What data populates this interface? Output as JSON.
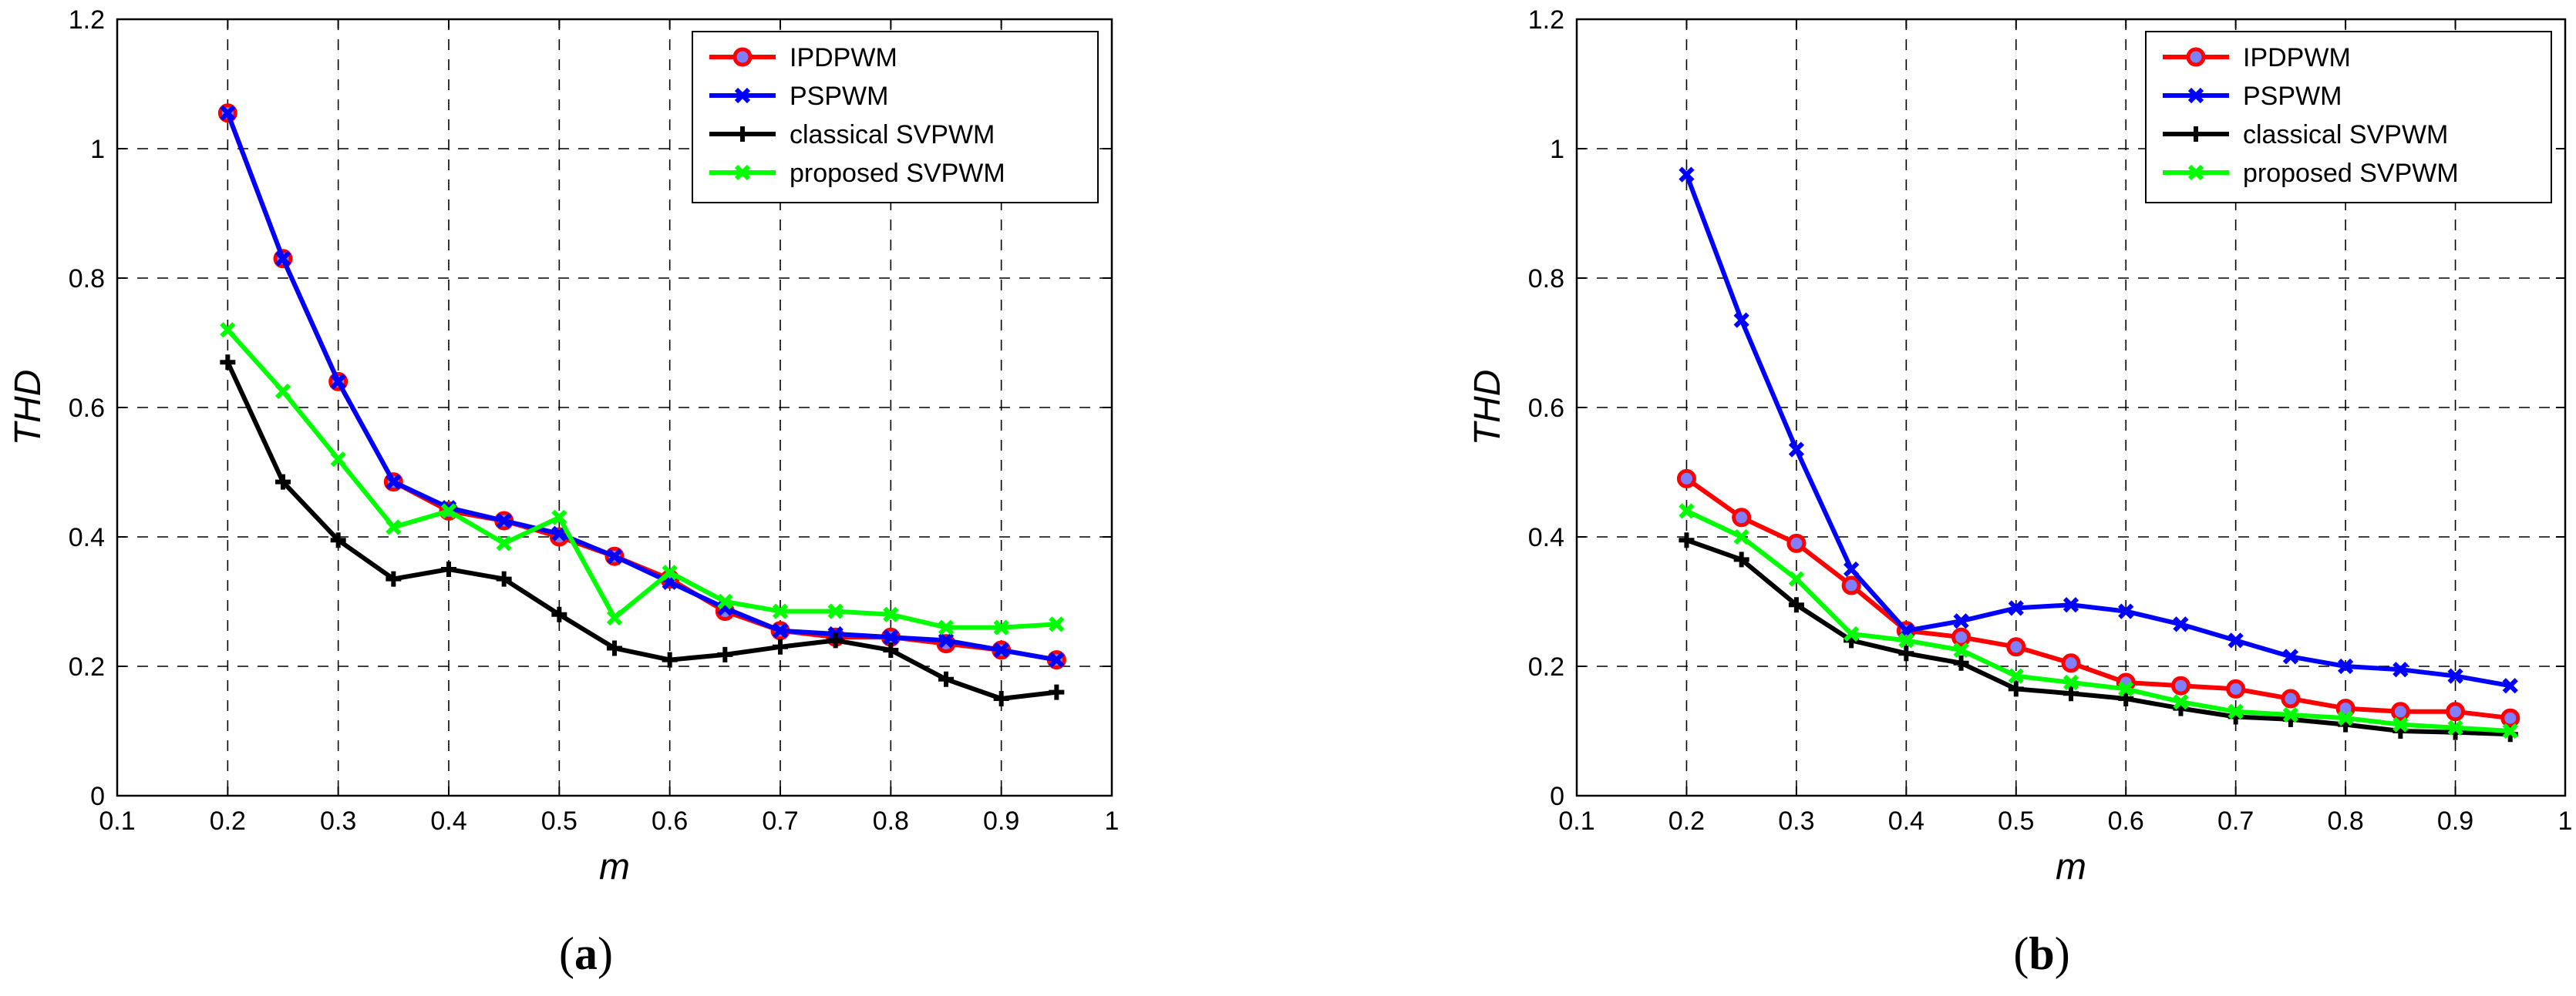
{
  "chart_data": [
    {
      "type": "line",
      "panel_label": "a",
      "xlabel": "m",
      "ylabel": "THD",
      "xlim": [
        0.1,
        1
      ],
      "ylim": [
        0,
        1.2
      ],
      "x_ticks": [
        0.1,
        0.2,
        0.3,
        0.4,
        0.5,
        0.6,
        0.7,
        0.8,
        0.9,
        1
      ],
      "x_tick_labels": [
        "0.1",
        "0.2",
        "0.3",
        "0.4",
        "0.5",
        "0.6",
        "0.7",
        "0.8",
        "0.9",
        "1"
      ],
      "y_ticks": [
        0,
        0.2,
        0.4,
        0.6,
        0.8,
        1,
        1.2
      ],
      "y_tick_labels": [
        "0",
        "0.2",
        "0.4",
        "0.6",
        "0.8",
        "1",
        "1.2"
      ],
      "grid": true,
      "legend_position": "top-right",
      "x": [
        0.2,
        0.25,
        0.3,
        0.35,
        0.4,
        0.45,
        0.5,
        0.55,
        0.6,
        0.65,
        0.7,
        0.75,
        0.8,
        0.85,
        0.9,
        0.95
      ],
      "series": [
        {
          "name": "IPDPWM",
          "color": "#ff0000",
          "marker": "circle",
          "values": [
            1.055,
            0.83,
            0.64,
            0.485,
            0.44,
            0.425,
            0.4,
            0.37,
            0.335,
            0.285,
            0.255,
            0.245,
            0.245,
            0.235,
            0.225,
            0.21
          ]
        },
        {
          "name": "PSPWM",
          "color": "#0000ff",
          "marker": "x",
          "values": [
            1.055,
            0.83,
            0.64,
            0.485,
            0.445,
            0.425,
            0.405,
            0.37,
            0.33,
            0.29,
            0.255,
            0.25,
            0.245,
            0.24,
            0.225,
            0.21
          ]
        },
        {
          "name": "classical SVPWM",
          "color": "#000000",
          "marker": "plus",
          "values": [
            0.67,
            0.485,
            0.395,
            0.335,
            0.35,
            0.335,
            0.28,
            0.228,
            0.21,
            0.218,
            0.23,
            0.24,
            0.225,
            0.18,
            0.15,
            0.16
          ]
        },
        {
          "name": "proposed SVPWM",
          "color": "#00ff00",
          "marker": "x",
          "values": [
            0.72,
            0.625,
            0.52,
            0.415,
            0.44,
            0.39,
            0.43,
            0.275,
            0.345,
            0.3,
            0.285,
            0.285,
            0.28,
            0.26,
            0.26,
            0.265
          ]
        }
      ]
    },
    {
      "type": "line",
      "panel_label": "b",
      "xlabel": "m",
      "ylabel": "THD",
      "xlim": [
        0.1,
        1
      ],
      "ylim": [
        0,
        1.2
      ],
      "x_ticks": [
        0.1,
        0.2,
        0.3,
        0.4,
        0.5,
        0.6,
        0.7,
        0.8,
        0.9,
        1
      ],
      "x_tick_labels": [
        "0.1",
        "0.2",
        "0.3",
        "0.4",
        "0.5",
        "0.6",
        "0.7",
        "0.8",
        "0.9",
        "1"
      ],
      "y_ticks": [
        0,
        0.2,
        0.4,
        0.6,
        0.8,
        1,
        1.2
      ],
      "y_tick_labels": [
        "0",
        "0.2",
        "0.4",
        "0.6",
        "0.8",
        "1",
        "1.2"
      ],
      "grid": true,
      "legend_position": "top-right",
      "x": [
        0.2,
        0.25,
        0.3,
        0.35,
        0.4,
        0.45,
        0.5,
        0.55,
        0.6,
        0.65,
        0.7,
        0.75,
        0.8,
        0.85,
        0.9,
        0.95
      ],
      "series": [
        {
          "name": "IPDPWM",
          "color": "#ff0000",
          "marker": "circle",
          "values": [
            0.49,
            0.43,
            0.39,
            0.325,
            0.255,
            0.245,
            0.23,
            0.205,
            0.175,
            0.17,
            0.165,
            0.15,
            0.135,
            0.13,
            0.13,
            0.12
          ]
        },
        {
          "name": "PSPWM",
          "color": "#0000ff",
          "marker": "x",
          "values": [
            0.96,
            0.735,
            0.535,
            0.35,
            0.255,
            0.27,
            0.29,
            0.295,
            0.285,
            0.265,
            0.24,
            0.215,
            0.2,
            0.195,
            0.185,
            0.17
          ]
        },
        {
          "name": "classical SVPWM",
          "color": "#000000",
          "marker": "plus",
          "values": [
            0.395,
            0.365,
            0.295,
            0.24,
            0.22,
            0.205,
            0.165,
            0.158,
            0.15,
            0.135,
            0.122,
            0.118,
            0.11,
            0.1,
            0.098,
            0.095
          ]
        },
        {
          "name": "proposed SVPWM",
          "color": "#00ff00",
          "marker": "x",
          "values": [
            0.44,
            0.4,
            0.335,
            0.25,
            0.24,
            0.225,
            0.185,
            0.175,
            0.165,
            0.145,
            0.13,
            0.125,
            0.12,
            0.11,
            0.105,
            0.1
          ]
        }
      ]
    }
  ]
}
